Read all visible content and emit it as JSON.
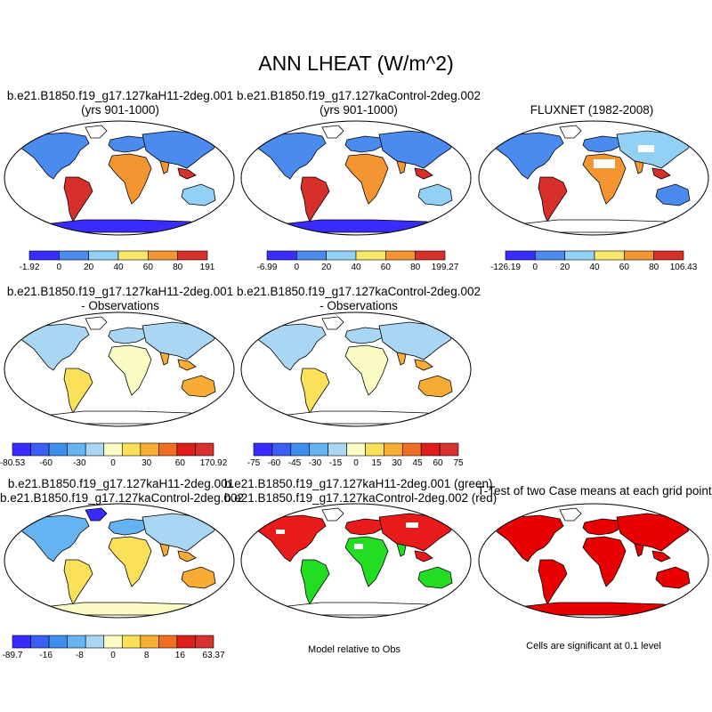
{
  "title": "ANN LHEAT (W/m^2)",
  "panels": [
    {
      "title1": "b.e21.B1850.f19_g17.127kaH11-2deg.001",
      "title2": "(yrs 901-1000)",
      "scheme": "mean1"
    },
    {
      "title1": "b.e21.B1850.f19_g17.127kaControl-2deg.002",
      "title2": "(yrs 901-1000)",
      "scheme": "mean2"
    },
    {
      "title1": "FLUXNET (1982-2008)",
      "title2": "",
      "scheme": "obs"
    },
    {
      "title1": "b.e21.B1850.f19_g17.127kaH11-2deg.001",
      "title2": "- Observations",
      "scheme": "diff1"
    },
    {
      "title1": "b.e21.B1850.f19_g17.127kaControl-2deg.002",
      "title2": "- Observations",
      "scheme": "diff2"
    },
    {
      "title1": "b.e21.B1850.f19_g17.127kaH11-2deg.001",
      "title2": "b.e21.B1850.f19_g17.127kaControl-2deg.002",
      "scheme": "casediff"
    },
    {
      "title1": "b.e21.B1850.f19_g17.127kaH11-2deg.001 (green)",
      "title2": "b.e21.B1850.f19_g17.127kaControl-2deg.002 (red)",
      "scheme": "relative"
    },
    {
      "title1": "T-Test of two Case means at each grid point",
      "title2": "",
      "scheme": "ttest"
    }
  ],
  "colorbars": [
    {
      "name": "mean1",
      "colors": [
        "#3a2cff",
        "#4b8bf0",
        "#93d0f5",
        "#f9e769",
        "#f59532",
        "#d7302b"
      ],
      "labels": [
        "-1.92",
        "0",
        "20",
        "40",
        "60",
        "80",
        "191"
      ]
    },
    {
      "name": "mean2",
      "colors": [
        "#3a2cff",
        "#4b8bf0",
        "#93d0f5",
        "#f9e769",
        "#f59532",
        "#d7302b"
      ],
      "labels": [
        "-6.99",
        "0",
        "20",
        "40",
        "60",
        "80",
        "199.27"
      ]
    },
    {
      "name": "obs",
      "colors": [
        "#3a2cff",
        "#4b8bf0",
        "#93d0f5",
        "#f9e769",
        "#f59532",
        "#d7302b"
      ],
      "labels": [
        "-126.19",
        "0",
        "20",
        "40",
        "60",
        "80",
        "106.43"
      ]
    },
    {
      "name": "diff1",
      "colors": [
        "#3a2cff",
        "#3b5ef2",
        "#3d8fee",
        "#66b3f2",
        "#a8d6f3",
        "#fbfbc4",
        "#fbe05a",
        "#f7ad35",
        "#ee6f22",
        "#df1d1b",
        "#d73232"
      ],
      "labels": [
        "-80.53",
        "-60",
        "-30",
        "0",
        "30",
        "60",
        "170.92"
      ]
    },
    {
      "name": "diff2",
      "colors": [
        "#3a2cff",
        "#3b5ef2",
        "#3d8fee",
        "#66b3f2",
        "#a8d6f3",
        "#fbfbc4",
        "#fbe05a",
        "#f7ad35",
        "#ee6f22",
        "#df1d1b",
        "#d73232"
      ],
      "labels": [
        "-75",
        "-60",
        "-45",
        "-30",
        "-15",
        "0",
        "15",
        "30",
        "45",
        "60",
        "75"
      ]
    },
    {
      "name": "casediff",
      "colors": [
        "#3a2cff",
        "#3b5ef2",
        "#3d8fee",
        "#66b3f2",
        "#a8d6f3",
        "#fbfbc4",
        "#fbe05a",
        "#f7ad35",
        "#ee6f22",
        "#df1d1b",
        "#d73232"
      ],
      "labels": [
        "-89.7",
        "-16",
        "-8",
        "0",
        "8",
        "16",
        "63.37"
      ]
    }
  ],
  "notes": {
    "relative": "Model relative to Obs",
    "ttest": "Cells are significant at 0.1 level"
  }
}
